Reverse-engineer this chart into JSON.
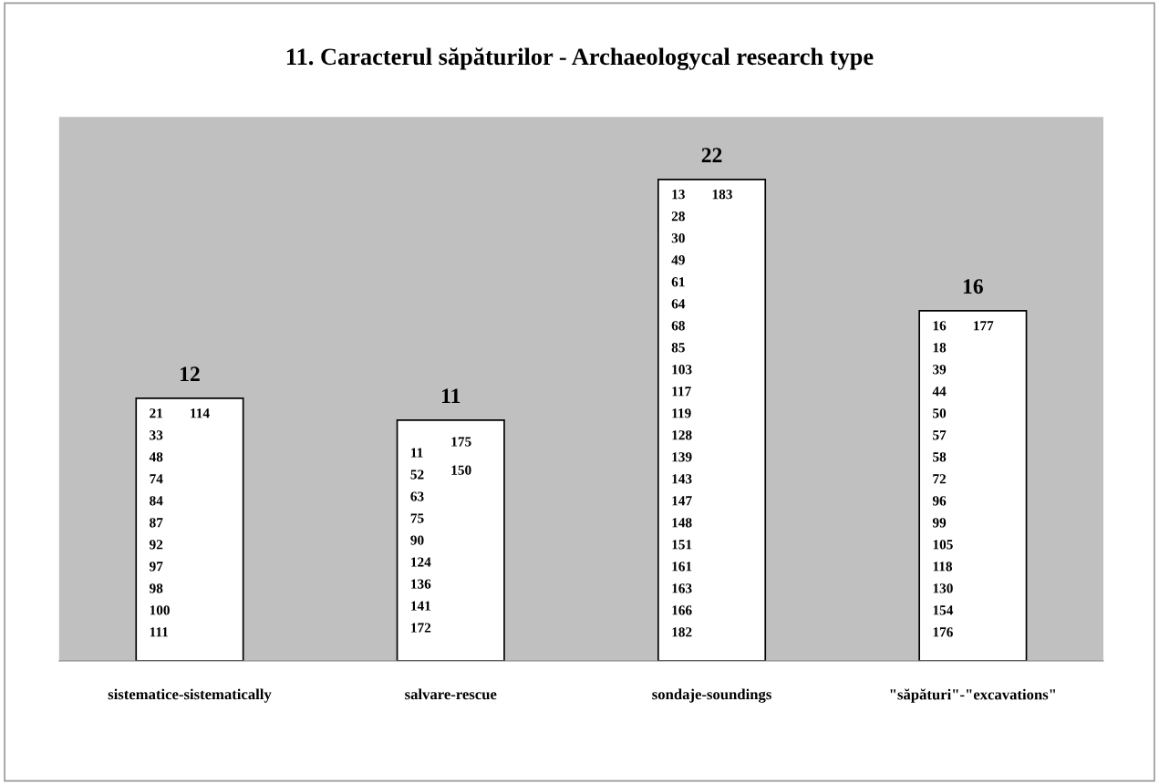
{
  "chart_data": {
    "type": "bar",
    "title": "11. Caracterul săpăturilor - Archaeologycal research type",
    "categories": [
      "sistematice-sistematically",
      "salvare-rescue",
      "sondaje-soundings",
      "\"săpături\"-\"excavations\""
    ],
    "values": [
      12,
      11,
      22,
      16
    ],
    "color": "#ffffff",
    "data_labels": true,
    "annotations": [
      "21",
      "114",
      "33",
      "48",
      "74",
      "84",
      "87",
      "92",
      "97",
      "98",
      "100",
      "111",
      "11",
      "175",
      "150",
      "52",
      "63",
      "75",
      "90",
      "124",
      "136",
      "141",
      "172",
      "13",
      "183",
      "28",
      "30",
      "49",
      "61",
      "64",
      "68",
      "85",
      "103",
      "117",
      "119",
      "128",
      "139",
      "143",
      "147",
      "148",
      "151",
      "161",
      "163",
      "166",
      "182",
      "16",
      "177",
      "18",
      "39",
      "44",
      "50",
      "57",
      "58",
      "72",
      "96",
      "99",
      "105",
      "118",
      "130",
      "154",
      "176"
    ]
  }
}
